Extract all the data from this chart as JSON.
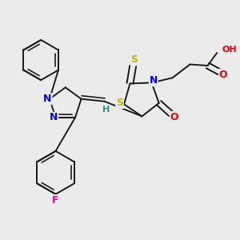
{
  "background_color": "#ebebeb",
  "figure_size": [
    3.0,
    3.0
  ],
  "dpi": 100,
  "atom_colors": {
    "C": "#1a1a1a",
    "N": "#0000ee",
    "O": "#ee0000",
    "S": "#bbbb00",
    "F": "#ee00aa",
    "H": "#3a8a8a"
  },
  "bond_color": "#1a1a1a",
  "bond_width": 1.4,
  "font_size": 9
}
